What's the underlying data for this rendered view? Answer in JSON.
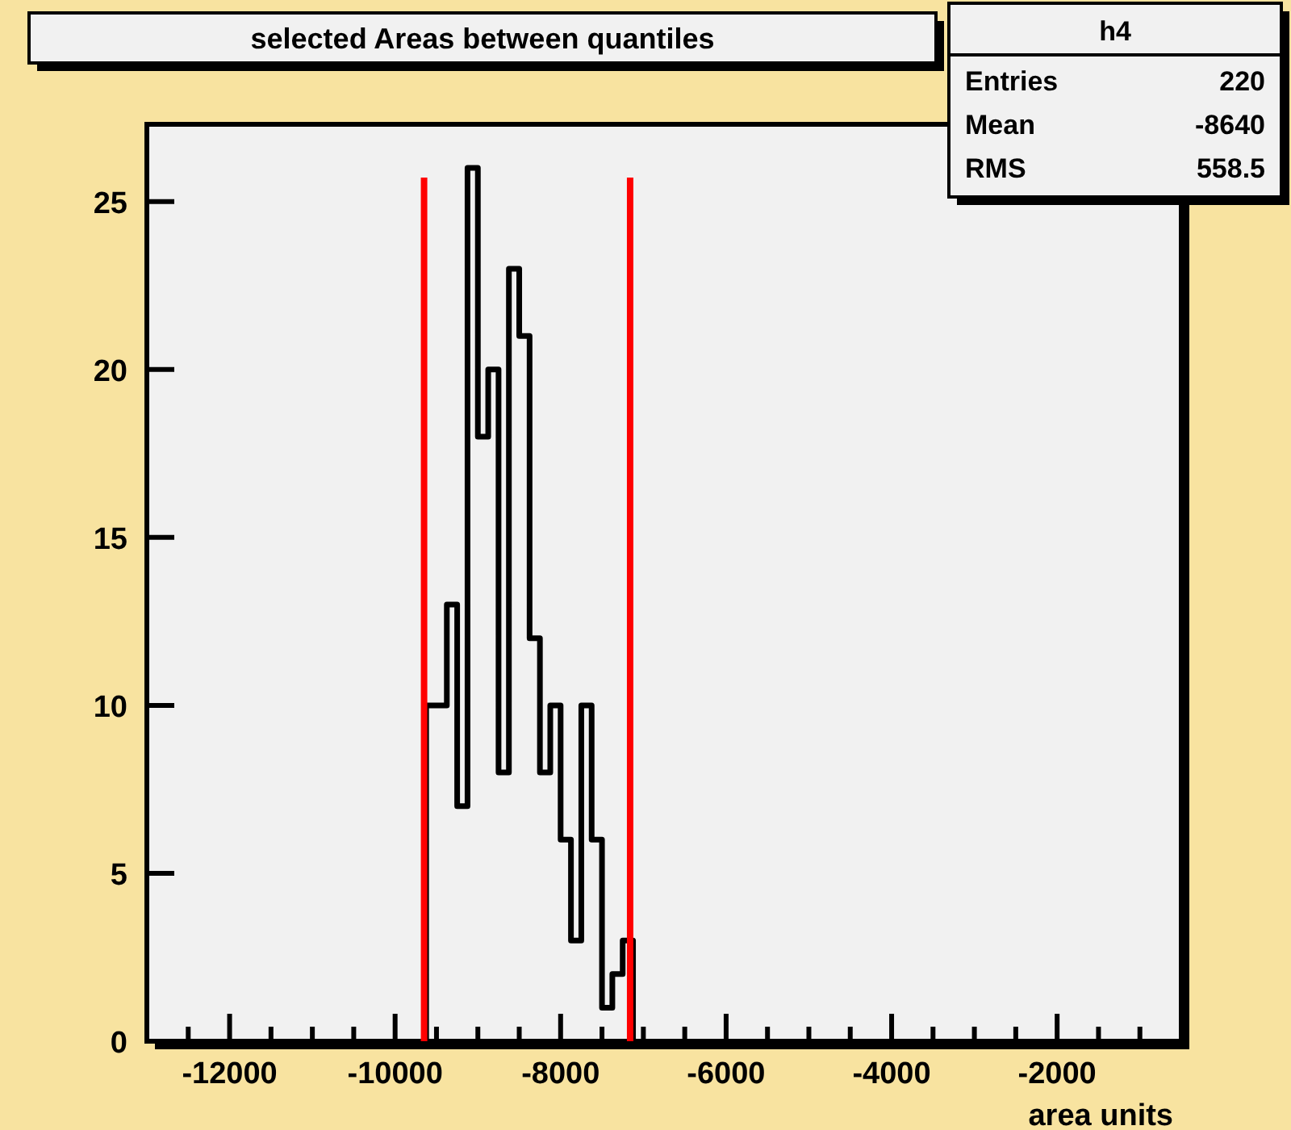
{
  "chart_data": {
    "type": "histogram",
    "title": "selected Areas between quantiles",
    "xlabel": "area units",
    "bins": [
      -9625,
      -9500,
      -9375,
      -9250,
      -9125,
      -9000,
      -8875,
      -8750,
      -8625,
      -8500,
      -8375,
      -8250,
      -8125,
      -8000,
      -7875,
      -7750,
      -7625,
      -7500,
      -7375,
      -7250,
      -7125
    ],
    "values": [
      10,
      10,
      13,
      7,
      26,
      18,
      20,
      8,
      23,
      21,
      12,
      8,
      10,
      6,
      3,
      10,
      6,
      1,
      2,
      3
    ],
    "color": "#000000",
    "xlim": [
      -13000,
      -500
    ],
    "xticks": [
      {
        "value": -12500,
        "label": null
      },
      -12000,
      {
        "value": -11500,
        "label": null
      },
      {
        "value": -11000,
        "label": null
      },
      {
        "value": -10500,
        "label": null
      },
      -10000,
      {
        "value": -9500,
        "label": null
      },
      {
        "value": -9000,
        "label": null
      },
      {
        "value": -8500,
        "label": null
      },
      -8000,
      {
        "value": -7500,
        "label": null
      },
      {
        "value": -7000,
        "label": null
      },
      {
        "value": -6500,
        "label": null
      },
      -6000,
      {
        "value": -5500,
        "label": null
      },
      {
        "value": -5000,
        "label": null
      },
      {
        "value": -4500,
        "label": null
      },
      -4000,
      {
        "value": -3500,
        "label": null
      },
      {
        "value": -3000,
        "label": null
      },
      {
        "value": -2500,
        "label": null
      },
      -2000,
      {
        "value": -1500,
        "label": null
      },
      {
        "value": -1000,
        "label": null
      }
    ],
    "ylim": [
      0,
      27.3
    ],
    "yticks": [
      0,
      5,
      10,
      15,
      20,
      25
    ],
    "ref_lines": [
      {
        "axis": "x",
        "value": -9650,
        "color": "#ff0000"
      },
      {
        "axis": "x",
        "value": -7160,
        "color": "#ff0000"
      }
    ],
    "annotations": [
      "h4",
      "Entries",
      "220",
      "Mean",
      "-8640",
      "RMS",
      "558.5"
    ],
    "grid": false
  }
}
